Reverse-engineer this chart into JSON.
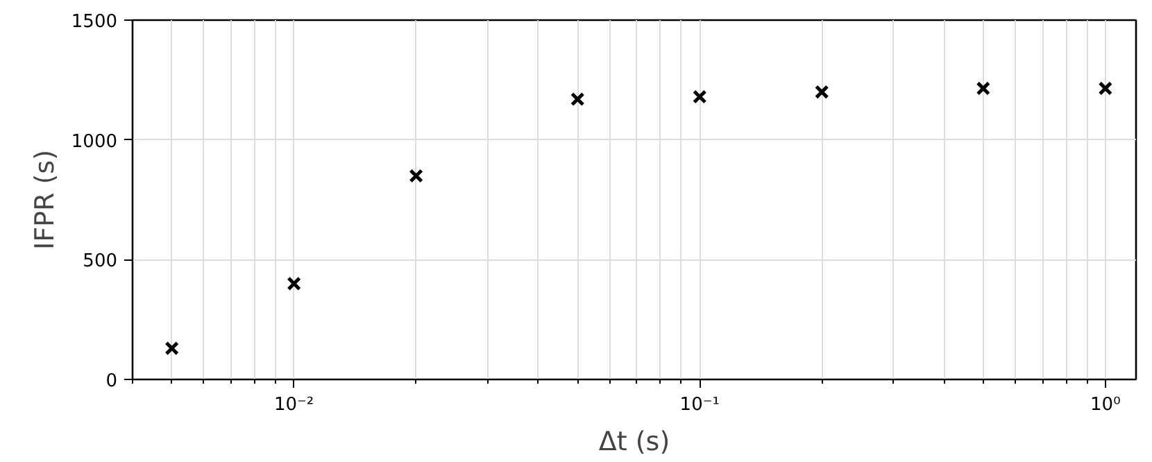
{
  "chart_data": {
    "type": "scatter",
    "xlabel": "Δt (s)",
    "ylabel": "IFPR (s)",
    "x": [
      0.005,
      0.01,
      0.02,
      0.05,
      0.1,
      0.2,
      0.5,
      1.0
    ],
    "series": [
      {
        "color": "#000000",
        "values": [
          130,
          400,
          850,
          1170,
          1180,
          1200,
          1215,
          1215
        ]
      }
    ],
    "log": "x",
    "xlim": [
      0.004,
      1.19
    ],
    "ylim": [
      0,
      1500
    ],
    "xticks": [
      {
        "value": 0.01,
        "label": "10⁻²"
      },
      {
        "value": 0.1,
        "label": "10⁻¹"
      },
      {
        "value": 1,
        "label": "10⁰"
      }
    ],
    "yticks": [
      0,
      500,
      1000,
      1500
    ],
    "grid": true,
    "marker": "cross"
  }
}
